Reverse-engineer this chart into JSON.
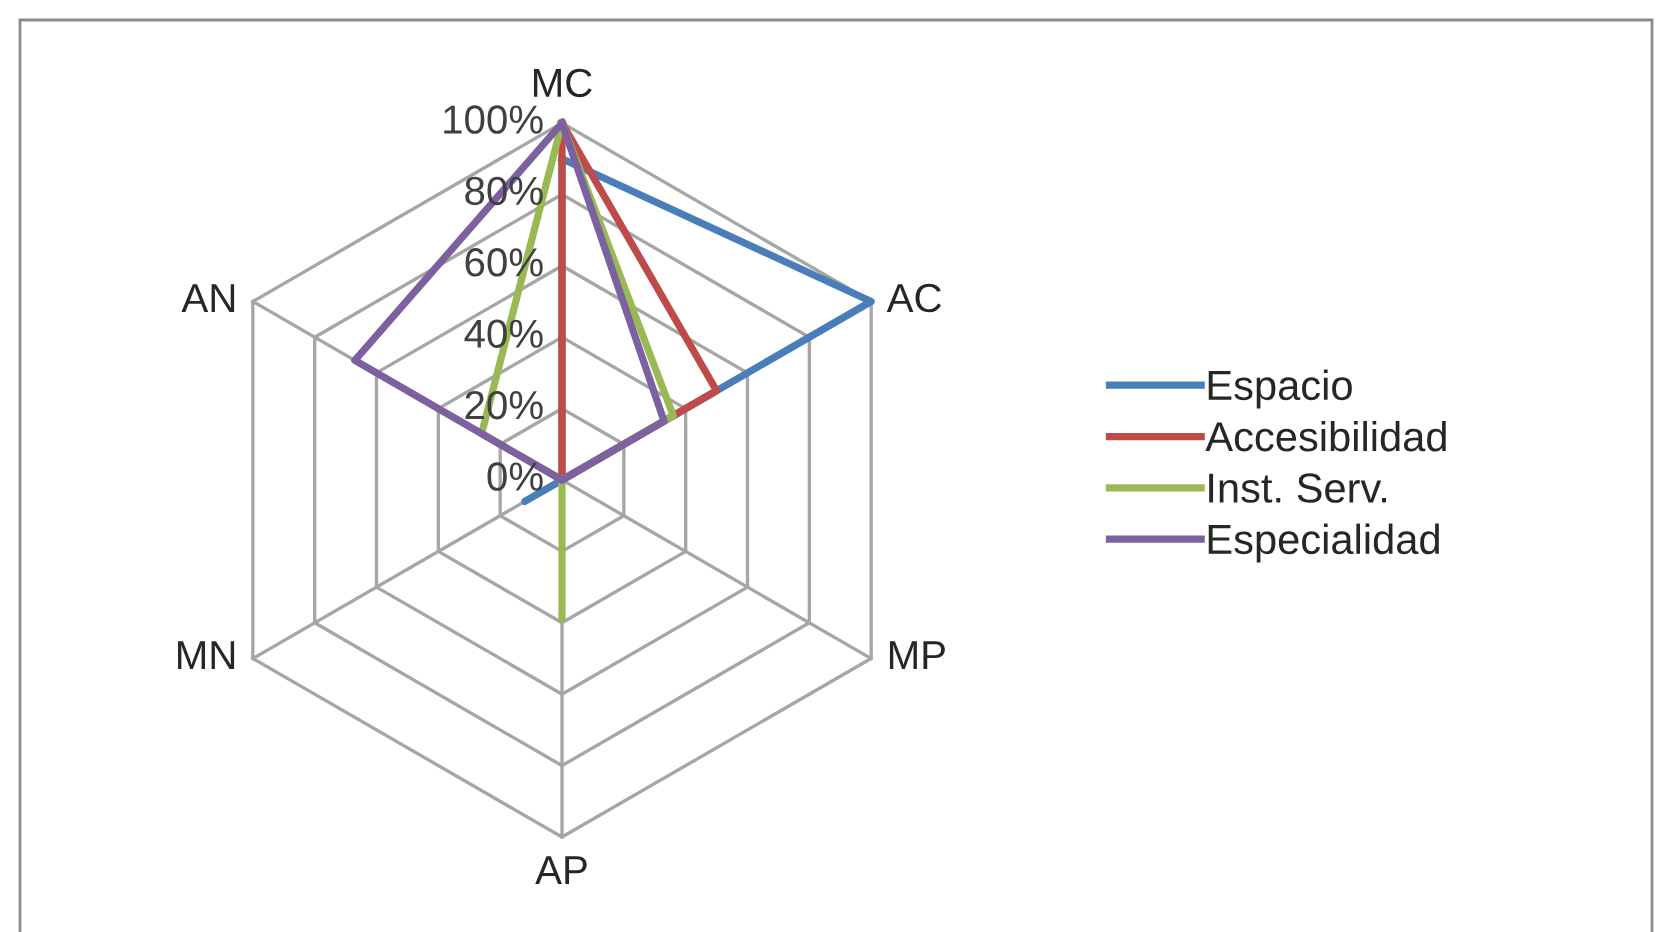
{
  "chart_data": {
    "type": "radar",
    "categories": [
      "MC",
      "AC",
      "MP",
      "AP",
      "MN",
      "AN"
    ],
    "series": [
      {
        "name": "Espacio",
        "color": "#4a7ebb",
        "values": [
          90,
          100,
          0,
          0,
          12,
          0
        ]
      },
      {
        "name": "Accesibilidad",
        "color": "#be4b48",
        "values": [
          100,
          50,
          0,
          0,
          0,
          0
        ]
      },
      {
        "name": "Inst. Serv.",
        "color": "#98b954",
        "values": [
          100,
          36,
          0,
          39,
          0,
          26
        ]
      },
      {
        "name": "Especialidad",
        "color": "#7d60a0",
        "values": [
          100,
          33,
          0,
          0,
          0,
          67
        ]
      }
    ],
    "ylim": [
      0,
      100
    ],
    "yticks": [
      {
        "value": 0,
        "label": "0%"
      },
      {
        "value": 20,
        "label": "20%"
      },
      {
        "value": 40,
        "label": "40%"
      },
      {
        "value": 60,
        "label": "60%"
      },
      {
        "value": 80,
        "label": "80%"
      },
      {
        "value": 100,
        "label": "100%"
      }
    ],
    "grid": true,
    "legend": "right"
  }
}
